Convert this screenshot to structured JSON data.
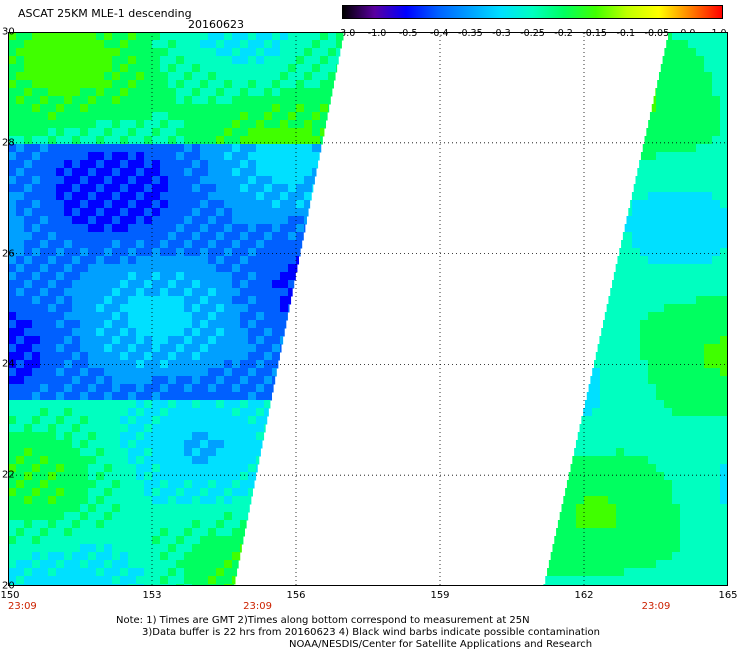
{
  "header": {
    "title": "ASCAT 25KM MLE-1 descending",
    "date": "20160623"
  },
  "colorbar": {
    "labels": [
      "-3.0",
      "-1.0",
      "-0.5",
      "-0.4",
      "-0.35",
      "-0.3",
      "-0.25",
      "-0.2",
      "-0.15",
      "-0.1",
      "-0.05",
      "0.0",
      "1.0"
    ],
    "colors": [
      "#000000",
      "#5a00a0",
      "#0000ff",
      "#0060ff",
      "#00a0ff",
      "#00e0ff",
      "#00ffc0",
      "#00ff60",
      "#40ff00",
      "#c0ff00",
      "#ffff00",
      "#ff8000",
      "#ff0000"
    ]
  },
  "map": {
    "lon_range": [
      150,
      165
    ],
    "lat_range": [
      20,
      30
    ],
    "x_ticks": [
      "150",
      "153",
      "156",
      "159",
      "162",
      "165"
    ],
    "y_ticks": [
      "30",
      "28",
      "26",
      "24",
      "22",
      "20"
    ],
    "grid": true,
    "times": [
      "23:09",
      "23:09",
      "23:09"
    ],
    "time_lons": [
      150.3,
      155.2,
      163.5
    ]
  },
  "notes": {
    "line1": "Note: 1) Times are GMT 2)Times along bottom correspond to measurement at 25N",
    "line2": "3)Data buffer is 22 hrs from 20160623 4) Black wind barbs indicate possible contamination",
    "line3": "NOAA/NESDIS/Center for Satellite Applications and Research"
  }
}
